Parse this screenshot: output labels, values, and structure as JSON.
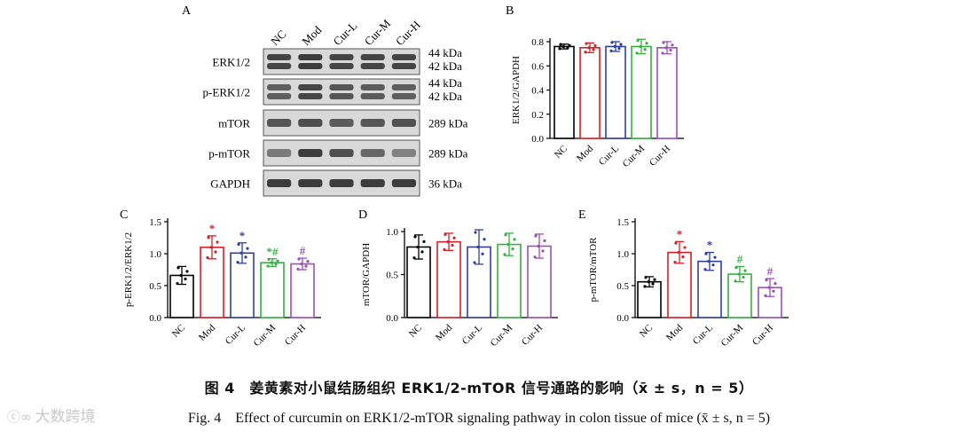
{
  "panel_letters": {
    "A": "A",
    "B": "B",
    "C": "C",
    "D": "D",
    "E": "E"
  },
  "colors": {
    "NC": "#000000",
    "Mod": "#d62027",
    "Cur-L": "#2e3f9e",
    "Cur-M": "#35b041",
    "Cur-H": "#9b4fb8",
    "band": "#2a2a2a",
    "membrane": "#d9d9d9"
  },
  "blot": {
    "lanes": [
      "NC",
      "Mod",
      "Cur-L",
      "Cur-M",
      "Cur-H"
    ],
    "rows": [
      {
        "protein": "ERK1/2",
        "mw": [
          "44 kDa",
          "42 kDa"
        ],
        "double": true,
        "intensity": [
          0.85,
          0.9,
          0.85,
          0.85,
          0.85
        ]
      },
      {
        "protein": "p-ERK1/2",
        "mw": [
          "44 kDa",
          "42 kDa"
        ],
        "double": true,
        "intensity": [
          0.7,
          0.85,
          0.75,
          0.72,
          0.7
        ]
      },
      {
        "protein": "mTOR",
        "mw": [
          "289 kDa"
        ],
        "double": false,
        "intensity": [
          0.75,
          0.8,
          0.72,
          0.75,
          0.78
        ]
      },
      {
        "protein": "p-mTOR",
        "mw": [
          "289 kDa"
        ],
        "double": false,
        "intensity": [
          0.55,
          0.9,
          0.8,
          0.65,
          0.5
        ]
      },
      {
        "protein": "GAPDH",
        "mw": [
          "36 kDa"
        ],
        "double": false,
        "intensity": [
          0.9,
          0.9,
          0.9,
          0.9,
          0.9
        ]
      }
    ]
  },
  "chart_data": [
    {
      "panel": "B",
      "type": "bar",
      "ylabel": "ERK1/2/GAPDH",
      "categories": [
        "NC",
        "Mod",
        "Cur-L",
        "Cur-M",
        "Cur-H"
      ],
      "values": [
        0.76,
        0.75,
        0.76,
        0.76,
        0.75
      ],
      "errors": [
        0.02,
        0.04,
        0.04,
        0.06,
        0.05
      ],
      "ylim": [
        0,
        0.8
      ],
      "yticks": [
        0,
        0.2,
        0.4,
        0.6,
        0.8
      ],
      "ytick_labels": [
        "0.0",
        "0.2",
        "0.4",
        "0.6",
        "0.8"
      ],
      "annotations": [
        "",
        "",
        "",
        "",
        ""
      ]
    },
    {
      "panel": "C",
      "type": "bar",
      "ylabel": "p-ERK1/2/ERK1/2",
      "categories": [
        "NC",
        "Mod",
        "Cur-L",
        "Cur-M",
        "Cur-H"
      ],
      "values": [
        0.66,
        1.1,
        1.01,
        0.86,
        0.84
      ],
      "errors": [
        0.14,
        0.18,
        0.16,
        0.06,
        0.09
      ],
      "ylim": [
        0,
        1.5
      ],
      "yticks": [
        0,
        0.5,
        1.0,
        1.5
      ],
      "ytick_labels": [
        "0.0",
        "0.5",
        "1.0",
        "1.5"
      ],
      "annotations": [
        "",
        "*",
        "*",
        "*#",
        "#"
      ]
    },
    {
      "panel": "D",
      "type": "bar",
      "ylabel": "mTOR/GAPDH",
      "categories": [
        "NC",
        "Mod",
        "Cur-L",
        "Cur-M",
        "Cur-H"
      ],
      "values": [
        0.82,
        0.88,
        0.82,
        0.85,
        0.83
      ],
      "errors": [
        0.14,
        0.1,
        0.2,
        0.13,
        0.14
      ],
      "ylim": [
        0,
        1.0
      ],
      "yticks": [
        0,
        0.5,
        1.0
      ],
      "ytick_labels": [
        "0.0",
        "0.5",
        "1.0"
      ],
      "annotations": [
        "",
        "",
        "",
        "",
        ""
      ]
    },
    {
      "panel": "E",
      "type": "bar",
      "ylabel": "p-mTOR/mTOR",
      "categories": [
        "NC",
        "Mod",
        "Cur-L",
        "Cur-M",
        "Cur-H"
      ],
      "values": [
        0.56,
        1.02,
        0.88,
        0.68,
        0.47
      ],
      "errors": [
        0.08,
        0.17,
        0.14,
        0.12,
        0.14
      ],
      "ylim": [
        0,
        1.5
      ],
      "yticks": [
        0,
        0.5,
        1.0,
        1.5
      ],
      "ytick_labels": [
        "0.0",
        "0.5",
        "1.0",
        "1.5"
      ],
      "annotations": [
        "",
        "*",
        "*",
        "#",
        "#"
      ]
    }
  ],
  "caption": {
    "cn": "图 4　姜黄素对小鼠结肠组织 ERK1/2-mTOR 信号通路的影响（x̄ ± s，n = 5）",
    "en": "Fig. 4　Effect of curcumin on ERK1/2-mTOR signaling pathway in colon tissue of mice (x̄ ± s, n = 5)"
  },
  "watermark": {
    "logo": "ⓒ∞",
    "text": "大数跨境"
  }
}
